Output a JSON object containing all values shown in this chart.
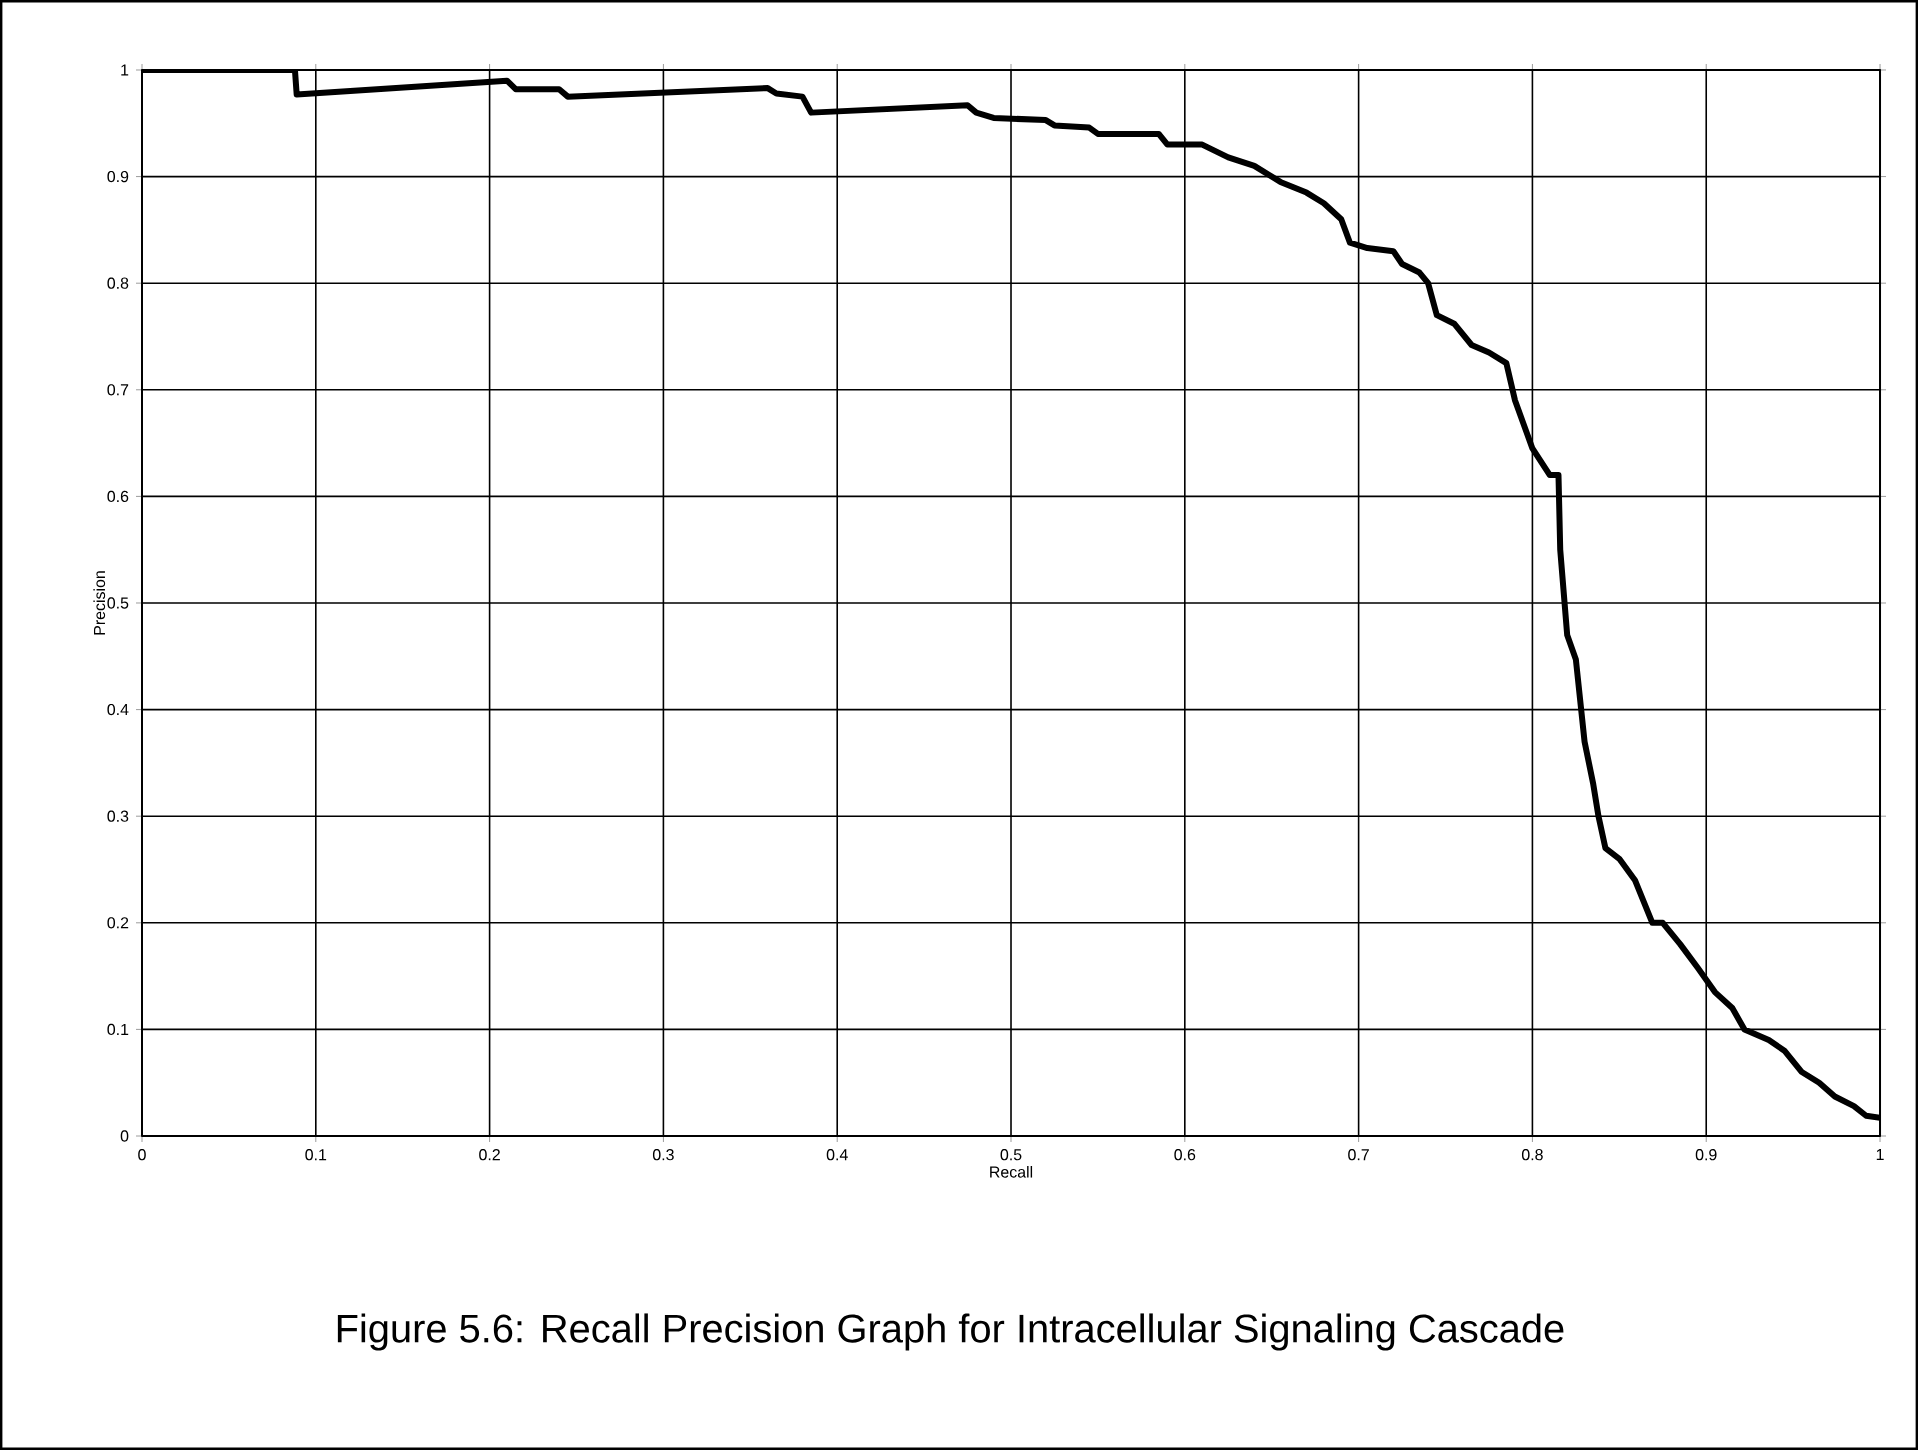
{
  "chart_data": {
    "type": "line",
    "title": "Figure 5.6: Recall Precision Graph for Intracellular Signaling Cascade",
    "xlabel": "Recall",
    "ylabel": "Precision",
    "xlim": [
      0,
      1
    ],
    "ylim": [
      0,
      1
    ],
    "xticks": [
      0,
      0.1,
      0.2,
      0.3,
      0.4,
      0.5,
      0.6,
      0.7,
      0.8,
      0.9,
      1
    ],
    "yticks": [
      0,
      0.1,
      0.2,
      0.3,
      0.4,
      0.5,
      0.6,
      0.7,
      0.8,
      0.9,
      1
    ],
    "grid": true,
    "line_style": "solid",
    "series": [
      {
        "color": "#000000",
        "x": [
          0,
          0.088,
          0.089,
          0.21,
          0.215,
          0.24,
          0.245,
          0.36,
          0.365,
          0.38,
          0.385,
          0.475,
          0.48,
          0.49,
          0.52,
          0.525,
          0.545,
          0.55,
          0.585,
          0.59,
          0.61,
          0.625,
          0.64,
          0.655,
          0.67,
          0.68,
          0.69,
          0.695,
          0.705,
          0.72,
          0.725,
          0.735,
          0.74,
          0.745,
          0.755,
          0.765,
          0.775,
          0.785,
          0.79,
          0.8,
          0.81,
          0.815,
          0.816,
          0.82,
          0.825,
          0.83,
          0.835,
          0.838,
          0.842,
          0.85,
          0.859,
          0.869,
          0.875,
          0.885,
          0.895,
          0.905,
          0.915,
          0.922,
          0.936,
          0.945,
          0.955,
          0.965,
          0.974,
          0.985,
          0.992,
          1
        ],
        "values": [
          1,
          1,
          0.977,
          0.99,
          0.982,
          0.982,
          0.975,
          0.983,
          0.978,
          0.975,
          0.96,
          0.967,
          0.96,
          0.955,
          0.953,
          0.948,
          0.946,
          0.94,
          0.94,
          0.93,
          0.93,
          0.918,
          0.91,
          0.895,
          0.885,
          0.875,
          0.86,
          0.838,
          0.833,
          0.83,
          0.818,
          0.81,
          0.8,
          0.77,
          0.762,
          0.742,
          0.735,
          0.725,
          0.69,
          0.645,
          0.62,
          0.62,
          0.55,
          0.47,
          0.447,
          0.37,
          0.33,
          0.3,
          0.27,
          0.26,
          0.24,
          0.2,
          0.2,
          0.18,
          0.158,
          0.135,
          0.12,
          0.1,
          0.09,
          0.08,
          0.06,
          0.05,
          0.037,
          0.028,
          0.019,
          0.017
        ]
      }
    ]
  }
}
